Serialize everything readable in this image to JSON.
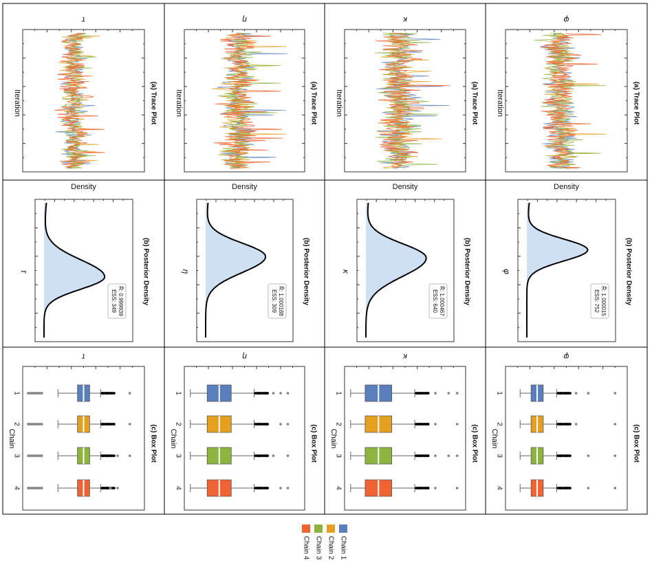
{
  "chart_data": {
    "type": "mcmc-diagnostics-grid",
    "rotation": "figure rotated 90 degrees clockwise",
    "parameters": [
      {
        "symbol": "τ",
        "rhat": "R̂: 0.999939",
        "ess": "ESS: 349",
        "density_peak": 0.55,
        "density_sd": 0.1,
        "density_left_tail": 1.6,
        "trace_level": 0.42,
        "trace_spread": 0.3,
        "box": {
          "q1": 0.45,
          "median": 0.5,
          "q3": 0.55,
          "whisker_hi": 0.64,
          "outliers_hi": [
            0.66,
            0.69,
            0.72,
            0.78,
            0.88
          ],
          "low_whisker": 0.29
        }
      },
      {
        "symbol": "η",
        "rhat": "R̂: 1.000188",
        "ess": "ESS: 309",
        "density_peak": 0.4,
        "density_sd": 0.13,
        "density_left_tail": 0.6,
        "trace_level": 0.45,
        "trace_spread": 0.4,
        "box": {
          "q1": 0.19,
          "median": 0.29,
          "q3": 0.39,
          "whisker_hi": 0.58,
          "outliers_hi": [
            0.62,
            0.68,
            0.74,
            0.8,
            0.86
          ],
          "low_whisker": 0.05
        }
      },
      {
        "symbol": "κ",
        "rhat": "R̂: 1.000467",
        "ess": "ESS: 640",
        "density_peak": 0.41,
        "density_sd": 0.15,
        "density_left_tail": 0.5,
        "trace_level": 0.45,
        "trace_spread": 0.4,
        "box": {
          "q1": 0.17,
          "median": 0.28,
          "q3": 0.39,
          "whisker_hi": 0.58,
          "outliers_hi": [
            0.62,
            0.68,
            0.75,
            0.86,
            0.93
          ],
          "low_whisker": 0.05
        }
      },
      {
        "symbol": "φ",
        "rhat": "R̂: 1.000015",
        "ess": "ESS: 752",
        "density_peak": 0.35,
        "density_sd": 0.09,
        "density_left_tail": 0.8,
        "trace_level": 0.45,
        "trace_spread": 0.38,
        "box": {
          "q1": 0.21,
          "median": 0.26,
          "q3": 0.31,
          "whisker_hi": 0.42,
          "outliers_hi": [
            0.45,
            0.5,
            0.58,
            0.68,
            0.9
          ],
          "low_whisker": 0.12
        }
      }
    ],
    "panel_titles": {
      "trace": "(a) Trace Plot",
      "density": "(b) Posterior Density",
      "box": "(c) Box Plot"
    },
    "axis_labels": {
      "trace_x": "Iteration",
      "density_y": "Density",
      "box_x": "Chain"
    },
    "chains": [
      "1",
      "2",
      "3",
      "4"
    ],
    "legend": [
      {
        "label": "Chain 1",
        "color": "#5b7fbc"
      },
      {
        "label": "Chain 2",
        "color": "#e5a022"
      },
      {
        "label": "Chain 3",
        "color": "#8cb43e"
      },
      {
        "label": "Chain 4",
        "color": "#ef6432"
      }
    ],
    "density_fill": "#cfe0f5",
    "legend_placement": "bottom-center"
  }
}
